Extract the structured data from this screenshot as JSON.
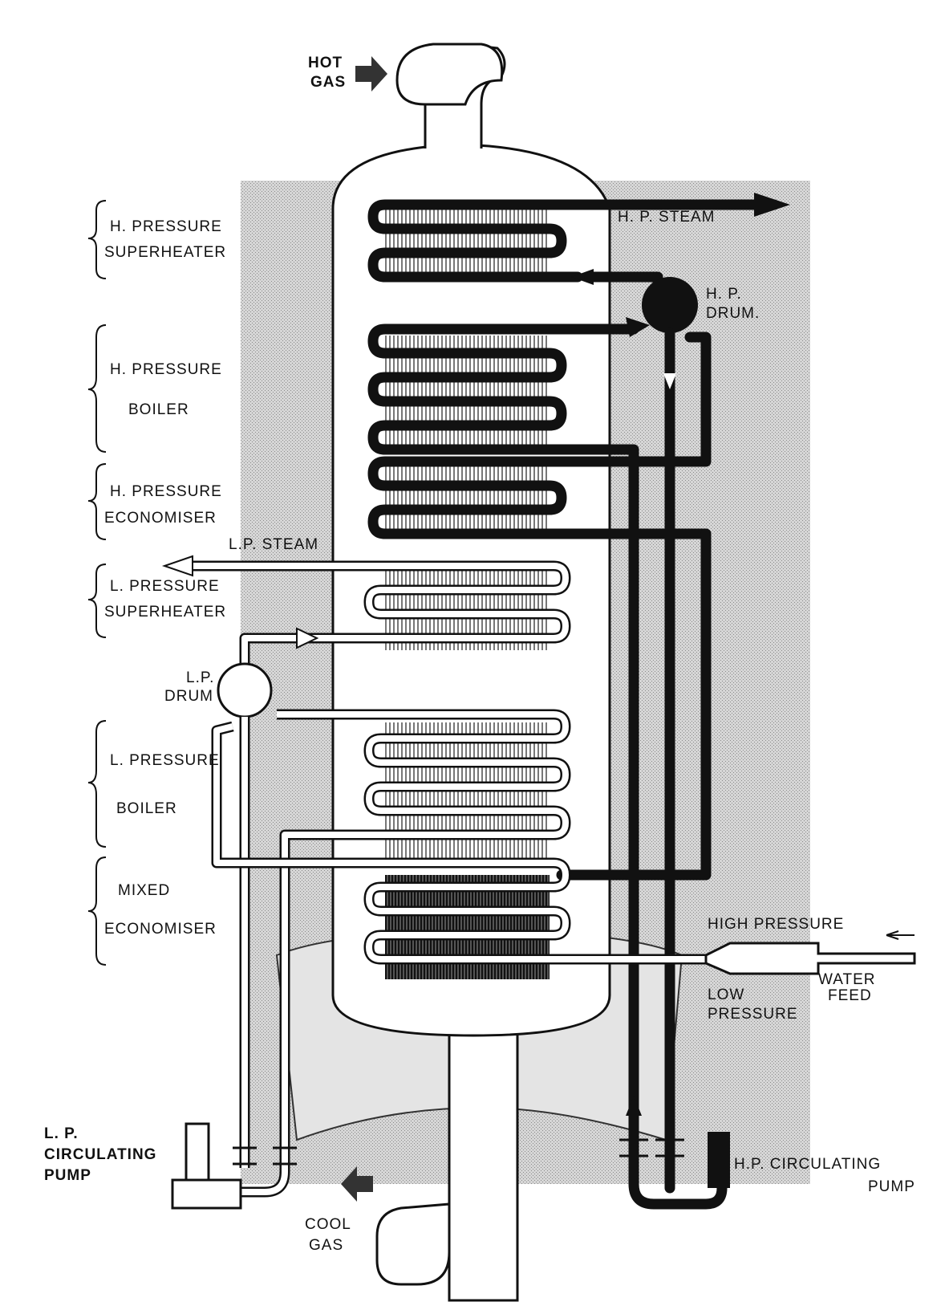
{
  "figure": {
    "inlet_label": [
      "HOT",
      "GAS"
    ],
    "outlet_label": [
      "COOL",
      "GAS"
    ],
    "hp_steam_label": "H. P. STEAM",
    "lp_steam_label": "L.P. STEAM",
    "hp_drum_label": [
      "H. P.",
      "DRUM."
    ],
    "lp_drum_label": [
      "L.P.",
      "DRUM"
    ],
    "water_feed": {
      "high_pressure": "HIGH PRESSURE",
      "low_pressure": [
        "LOW",
        "PRESSURE"
      ],
      "water_feed": [
        "WATER",
        "FEED"
      ]
    },
    "lp_pump_label": [
      "L. P.",
      "CIRCULATING",
      "PUMP"
    ],
    "hp_pump_label": [
      "H.P. CIRCULATING",
      "PUMP"
    ]
  },
  "sections": [
    {
      "lines": [
        "H. PRESSURE",
        "SUPERHEATER"
      ]
    },
    {
      "lines": [
        "H. PRESSURE",
        "BOILER"
      ]
    },
    {
      "lines": [
        "H. PRESSURE",
        "ECONOMISER"
      ]
    },
    {
      "lines": [
        "L. PRESSURE",
        "SUPERHEATER"
      ]
    },
    {
      "lines": [
        "L. PRESSURE",
        "BOILER"
      ]
    },
    {
      "lines": [
        "MIXED",
        "ECONOMISER"
      ]
    }
  ],
  "colors": {
    "ink": "#111111",
    "stipple_background": "#c9c9c9",
    "paper": "#ffffff"
  }
}
